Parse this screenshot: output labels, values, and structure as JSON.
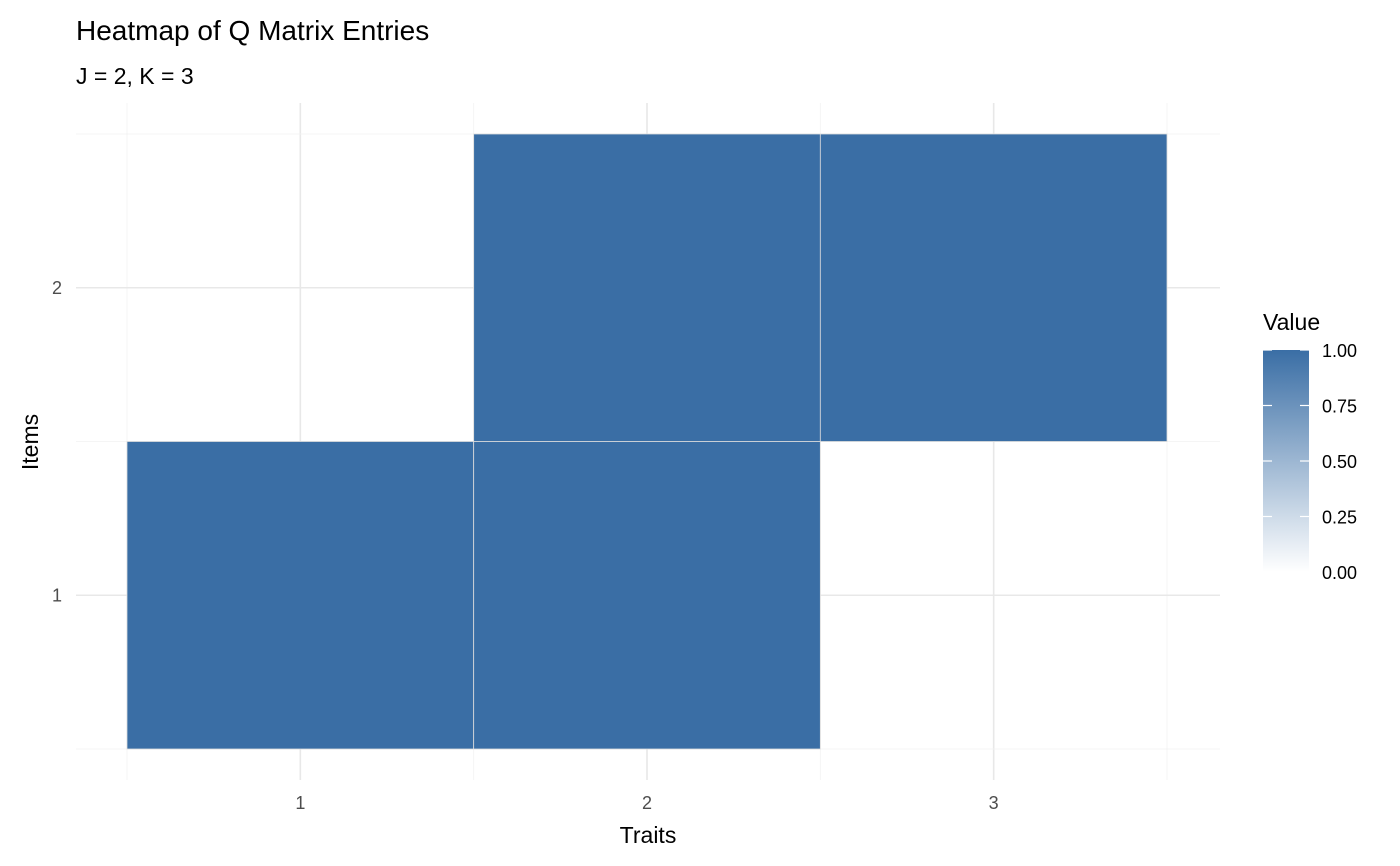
{
  "chart_data": {
    "type": "heatmap",
    "title": "Heatmap of Q Matrix Entries",
    "subtitle": "J = 2, K = 3",
    "xlabel": "Traits",
    "ylabel": "Items",
    "x_categories": [
      "1",
      "2",
      "3"
    ],
    "y_categories": [
      "1",
      "2"
    ],
    "values": [
      [
        1,
        1,
        0
      ],
      [
        0,
        1,
        1
      ]
    ],
    "value_range": [
      0,
      1
    ],
    "color_low": "#ffffff",
    "color_high": "#3a6ea5",
    "grid": true,
    "legend": {
      "title": "Value",
      "position": "right",
      "ticks": [
        "0.00",
        "0.25",
        "0.50",
        "0.75",
        "1.00"
      ]
    }
  }
}
